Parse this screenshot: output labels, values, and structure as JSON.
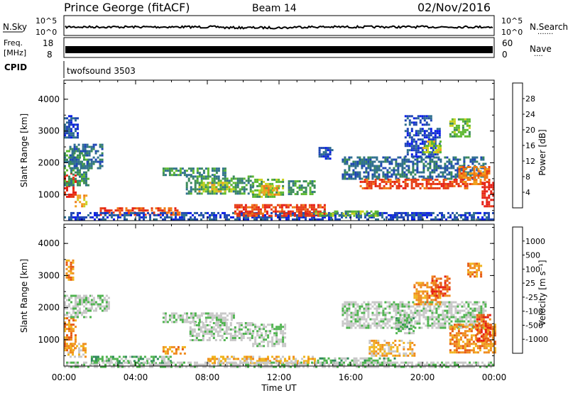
{
  "header": {
    "station": "Prince George (fitACF)",
    "beam": "Beam 14",
    "date": "02/Nov/2016"
  },
  "sky_panel": {
    "label": "N.Sky",
    "right_label": "N.Search",
    "left_ticks": [
      "10^5",
      "10^0"
    ],
    "right_ticks": [
      "10^5",
      "10^0"
    ],
    "right_dots": "......."
  },
  "freq_panel": {
    "label_line1": "Freq.",
    "label_line2": "[MHz]",
    "right_label": "Nave",
    "left_ticks": [
      "18",
      "8"
    ],
    "right_ticks": [
      "60",
      "0"
    ],
    "right_dots": "...."
  },
  "cpid_panel": {
    "label": "CPID",
    "program": "twofsound 3503"
  },
  "time_axis": {
    "xlabel": "Time UT",
    "ticks": [
      "00:00",
      "04:00",
      "08:00",
      "12:00",
      "16:00",
      "20:00",
      "00:00"
    ]
  },
  "power_colorbar": {
    "label": "Power [dB]",
    "colors": [
      "#0a1ee6",
      "#1e46b4",
      "#2f6f8f",
      "#3a8a5a",
      "#5cb830",
      "#c8d21e",
      "#f0a01e",
      "#f07814",
      "#e63c14",
      "#e61e14"
    ],
    "ticks": [
      "28",
      "24",
      "20",
      "16",
      "12",
      "8",
      "4"
    ]
  },
  "velocity_colorbar": {
    "label": "Velocity [m s⁻¹]",
    "colors": [
      "#1e3cc8",
      "#2864a0",
      "#2f8a5a",
      "#50b450",
      "#c8c8c8",
      "#c8c8c8",
      "#f0b41e",
      "#f08c1e",
      "#e65a14",
      "#e61e14"
    ],
    "ticks": [
      "1000",
      "500",
      "100",
      "25",
      "-25",
      "-100",
      "-500",
      "-1000"
    ]
  },
  "chart_data": [
    {
      "type": "heatmap",
      "title": "Power [dB]",
      "xlabel": "Time UT",
      "ylabel": "Slant Range [km]",
      "xlim": [
        0,
        24
      ],
      "ylim": [
        180,
        4600
      ],
      "yticks": [
        "1000",
        "2000",
        "3000",
        "4000"
      ],
      "colorbar_ticks": [
        "28",
        "24",
        "20",
        "16",
        "12",
        "8",
        "4"
      ],
      "regions": [
        {
          "t0": 0.0,
          "t1": 0.6,
          "r0": 900,
          "r1": 1700,
          "level": 9
        },
        {
          "t0": 0.0,
          "t1": 1.4,
          "r0": 1300,
          "r1": 2400,
          "level": 3
        },
        {
          "t0": 0.3,
          "t1": 2.2,
          "r0": 1800,
          "r1": 2600,
          "level": 2
        },
        {
          "t0": 0.6,
          "t1": 1.2,
          "r0": 600,
          "r1": 1000,
          "level": 6
        },
        {
          "t0": 0.0,
          "t1": 0.8,
          "r0": 2800,
          "r1": 3500,
          "level": 1
        },
        {
          "t0": 2.0,
          "t1": 6.5,
          "r0": 350,
          "r1": 600,
          "level": 8
        },
        {
          "t0": 0.0,
          "t1": 24.0,
          "r0": 200,
          "r1": 450,
          "level": 1
        },
        {
          "t0": 5.5,
          "t1": 9.0,
          "r0": 1600,
          "r1": 1850,
          "level": 3
        },
        {
          "t0": 6.8,
          "t1": 10.5,
          "r0": 1000,
          "r1": 1600,
          "level": 3
        },
        {
          "t0": 7.5,
          "t1": 9.5,
          "r0": 1100,
          "r1": 1400,
          "level": 5
        },
        {
          "t0": 10.5,
          "t1": 12.2,
          "r0": 900,
          "r1": 1500,
          "level": 4
        },
        {
          "t0": 11.0,
          "t1": 12.0,
          "r0": 1000,
          "r1": 1300,
          "level": 6
        },
        {
          "t0": 12.5,
          "t1": 14.0,
          "r0": 1000,
          "r1": 1450,
          "level": 3
        },
        {
          "t0": 9.5,
          "t1": 14.5,
          "r0": 350,
          "r1": 700,
          "level": 8
        },
        {
          "t0": 14.0,
          "t1": 17.5,
          "r0": 300,
          "r1": 500,
          "level": 4
        },
        {
          "t0": 15.5,
          "t1": 23.5,
          "r0": 1500,
          "r1": 2200,
          "level": 2
        },
        {
          "t0": 16.5,
          "t1": 22.5,
          "r0": 1200,
          "r1": 1500,
          "level": 8
        },
        {
          "t0": 22.0,
          "t1": 23.7,
          "r0": 1300,
          "r1": 1900,
          "level": 7
        },
        {
          "t0": 23.3,
          "t1": 24.0,
          "r0": 600,
          "r1": 1400,
          "level": 9
        },
        {
          "t0": 19.0,
          "t1": 21.0,
          "r0": 2200,
          "r1": 3100,
          "level": 1
        },
        {
          "t0": 20.0,
          "t1": 21.0,
          "r0": 2300,
          "r1": 2700,
          "level": 5
        },
        {
          "t0": 21.5,
          "t1": 22.6,
          "r0": 2800,
          "r1": 3400,
          "level": 4
        },
        {
          "t0": 19.0,
          "t1": 20.5,
          "r0": 3200,
          "r1": 3500,
          "level": 1
        },
        {
          "t0": 14.2,
          "t1": 15.0,
          "r0": 2100,
          "r1": 2500,
          "level": 1
        }
      ]
    },
    {
      "type": "heatmap",
      "title": "Velocity [m s⁻¹]",
      "xlabel": "Time UT",
      "ylabel": "Slant Range [km]",
      "xlim": [
        0,
        24
      ],
      "ylim": [
        180,
        4600
      ],
      "yticks": [
        "1000",
        "2000",
        "3000",
        "4000"
      ],
      "colorbar_ticks": [
        "1000",
        "500",
        "100",
        "25",
        "-25",
        "-100",
        "-500",
        "-1000"
      ],
      "regions": [
        {
          "t0": 0.0,
          "t1": 0.6,
          "r0": 700,
          "r1": 1700,
          "level": 7
        },
        {
          "t0": 0.2,
          "t1": 1.2,
          "r0": 500,
          "r1": 900,
          "level": 6
        },
        {
          "t0": 0.0,
          "t1": 1.5,
          "r0": 1700,
          "r1": 2400,
          "level": 4
        },
        {
          "t0": 1.5,
          "t1": 2.5,
          "r0": 1900,
          "r1": 2400,
          "level": 4
        },
        {
          "t0": 0.1,
          "t1": 0.5,
          "r0": 2900,
          "r1": 3500,
          "level": 7
        },
        {
          "t0": 1.5,
          "t1": 6.0,
          "r0": 300,
          "r1": 500,
          "level": 3
        },
        {
          "t0": 5.5,
          "t1": 9.5,
          "r0": 1550,
          "r1": 1850,
          "level": 4
        },
        {
          "t0": 7.0,
          "t1": 10.5,
          "r0": 1000,
          "r1": 1550,
          "level": 4
        },
        {
          "t0": 5.5,
          "t1": 6.8,
          "r0": 600,
          "r1": 800,
          "level": 7
        },
        {
          "t0": 10.5,
          "t1": 12.3,
          "r0": 800,
          "r1": 1500,
          "level": 4
        },
        {
          "t0": 8.0,
          "t1": 14.0,
          "r0": 300,
          "r1": 500,
          "level": 6
        },
        {
          "t0": 14.0,
          "t1": 18.5,
          "r0": 250,
          "r1": 450,
          "level": 3
        },
        {
          "t0": 15.5,
          "t1": 23.5,
          "r0": 1400,
          "r1": 2200,
          "level": 4
        },
        {
          "t0": 17.0,
          "t1": 19.5,
          "r0": 500,
          "r1": 1000,
          "level": 6
        },
        {
          "t0": 18.5,
          "t1": 19.5,
          "r0": 1200,
          "r1": 1700,
          "level": 3
        },
        {
          "t0": 21.5,
          "t1": 24.0,
          "r0": 600,
          "r1": 1500,
          "level": 7
        },
        {
          "t0": 23.0,
          "t1": 23.8,
          "r0": 1000,
          "r1": 1800,
          "level": 8
        },
        {
          "t0": 19.5,
          "t1": 21.0,
          "r0": 2100,
          "r1": 2800,
          "level": 7
        },
        {
          "t0": 20.5,
          "t1": 21.5,
          "r0": 2400,
          "r1": 3000,
          "level": 8
        },
        {
          "t0": 22.5,
          "t1": 23.3,
          "r0": 3000,
          "r1": 3400,
          "level": 7
        },
        {
          "t0": 0.0,
          "t1": 24.0,
          "r0": 180,
          "r1": 320,
          "level": 4
        }
      ]
    }
  ]
}
